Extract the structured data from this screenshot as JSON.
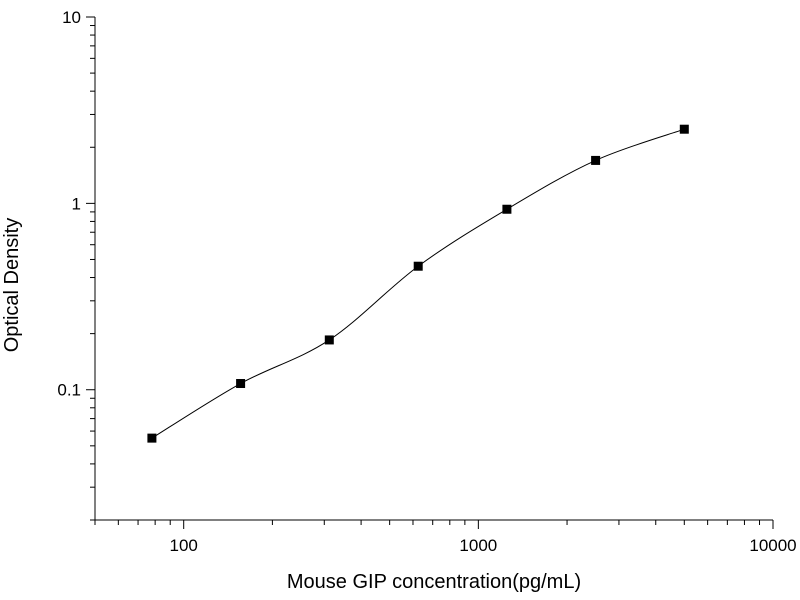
{
  "chart_data": {
    "type": "scatter",
    "title": "",
    "xlabel": "Mouse GIP concentration(pg/mL)",
    "ylabel": "Optical Density",
    "x_scale": "log",
    "y_scale": "log",
    "xlim": [
      50,
      10000
    ],
    "ylim": [
      0.02,
      10
    ],
    "x_tick_labels": [
      "100",
      "1000",
      "10000"
    ],
    "y_tick_labels": [
      "0.1",
      "1",
      "10"
    ],
    "grid": false,
    "legend": "none",
    "series": [
      {
        "x": [
          78,
          156,
          312,
          625,
          1250,
          2500,
          5000
        ],
        "y": [
          0.055,
          0.108,
          0.185,
          0.46,
          0.93,
          1.7,
          2.5
        ],
        "marker": "square",
        "fit_curve": true
      }
    ]
  }
}
